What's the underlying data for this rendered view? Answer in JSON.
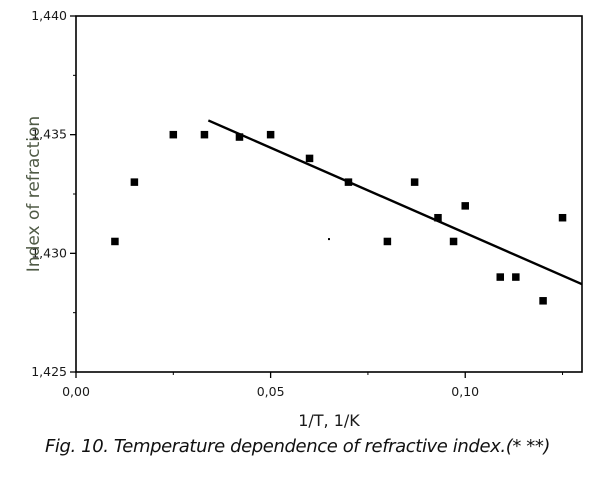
{
  "caption": "Fig. 10. Temperature dependence of refractive index.(* **)",
  "chart_data": {
    "type": "scatter",
    "title": "",
    "xlabel": "1/T, 1/K",
    "ylabel": "Index of refraction",
    "xlim": [
      0.0,
      0.13
    ],
    "ylim": [
      1.425,
      1.44
    ],
    "x_ticks": [
      {
        "value": 0.0,
        "label": "0,00"
      },
      {
        "value": 0.05,
        "label": "0,05"
      },
      {
        "value": 0.1,
        "label": "0,10"
      }
    ],
    "y_ticks": [
      {
        "value": 1.425,
        "label": "1,425"
      },
      {
        "value": 1.43,
        "label": "1,430"
      },
      {
        "value": 1.435,
        "label": "1,435"
      },
      {
        "value": 1.44,
        "label": "1,440"
      }
    ],
    "grid": false,
    "legend": "none",
    "series": [
      {
        "type": "scatter",
        "marker": "square",
        "color": "#000000",
        "points": [
          {
            "x": 0.01,
            "y": 1.4305
          },
          {
            "x": 0.015,
            "y": 1.433
          },
          {
            "x": 0.025,
            "y": 1.435
          },
          {
            "x": 0.033,
            "y": 1.435
          },
          {
            "x": 0.042,
            "y": 1.4349
          },
          {
            "x": 0.05,
            "y": 1.435
          },
          {
            "x": 0.06,
            "y": 1.434
          },
          {
            "x": 0.07,
            "y": 1.433
          },
          {
            "x": 0.08,
            "y": 1.4305
          },
          {
            "x": 0.087,
            "y": 1.433
          },
          {
            "x": 0.093,
            "y": 1.4315
          },
          {
            "x": 0.097,
            "y": 1.4305
          },
          {
            "x": 0.1,
            "y": 1.432
          },
          {
            "x": 0.109,
            "y": 1.429
          },
          {
            "x": 0.113,
            "y": 1.429
          },
          {
            "x": 0.12,
            "y": 1.428
          },
          {
            "x": 0.125,
            "y": 1.4315
          },
          {
            "x": 0.065,
            "y": 1.4306,
            "tiny": true
          }
        ]
      },
      {
        "type": "line",
        "color": "#000000",
        "points": [
          {
            "x": 0.034,
            "y": 1.4356
          },
          {
            "x": 0.13,
            "y": 1.4287
          }
        ]
      }
    ]
  }
}
